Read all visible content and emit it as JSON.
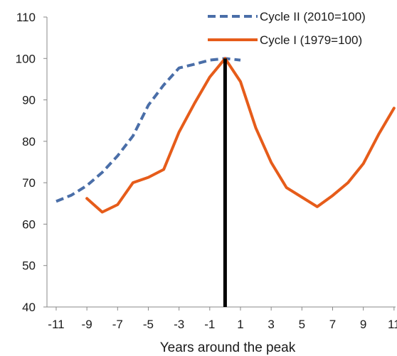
{
  "chart_data": {
    "type": "line",
    "title": "",
    "xlabel": "Years around the peak",
    "ylabel": "",
    "xlim": [
      -11.6,
      11.1
    ],
    "ylim": [
      40,
      110
    ],
    "x_ticks": [
      -11,
      -9,
      -7,
      -5,
      -3,
      -1,
      1,
      3,
      5,
      7,
      9,
      11
    ],
    "x_tick_labels": [
      "-11",
      "-9",
      "-7",
      "-5",
      "-3",
      "-1",
      "1",
      "3",
      "5",
      "7",
      "9",
      "11"
    ],
    "y_ticks": [
      40,
      50,
      60,
      70,
      80,
      90,
      100,
      110
    ],
    "y_tick_labels": [
      "40",
      "50",
      "60",
      "70",
      "80",
      "90",
      "100",
      "110"
    ],
    "grid": false,
    "legend": "top-right",
    "peak_marker": {
      "x": 0,
      "color": "#000000"
    },
    "series": [
      {
        "name": "Cycle II (2010=100)",
        "color": "#4a6ea8",
        "dash": true,
        "x": [
          -11,
          -10,
          -9,
          -8,
          -7,
          -6,
          -5,
          -4,
          -3,
          -2,
          -1,
          0,
          1
        ],
        "y": [
          65.5,
          67,
          69.3,
          72.5,
          76.5,
          81.3,
          88.7,
          93.6,
          97.7,
          98.6,
          99.6,
          100,
          99.6
        ]
      },
      {
        "name": "Cycle I (1979=100)",
        "color": "#e65c1a",
        "dash": false,
        "x": [
          -9,
          -8,
          -7,
          -6,
          -5,
          -4,
          -3,
          -2,
          -1,
          0,
          1,
          2,
          3,
          4,
          5,
          6,
          7,
          8,
          9,
          10,
          11
        ],
        "y": [
          66.2,
          62.9,
          64.7,
          70,
          71.3,
          73.2,
          82.2,
          89.1,
          95.5,
          100,
          94.4,
          83.2,
          74.9,
          68.8,
          66.5,
          64.2,
          66.9,
          70,
          74.6,
          81.7,
          88
        ]
      }
    ]
  }
}
